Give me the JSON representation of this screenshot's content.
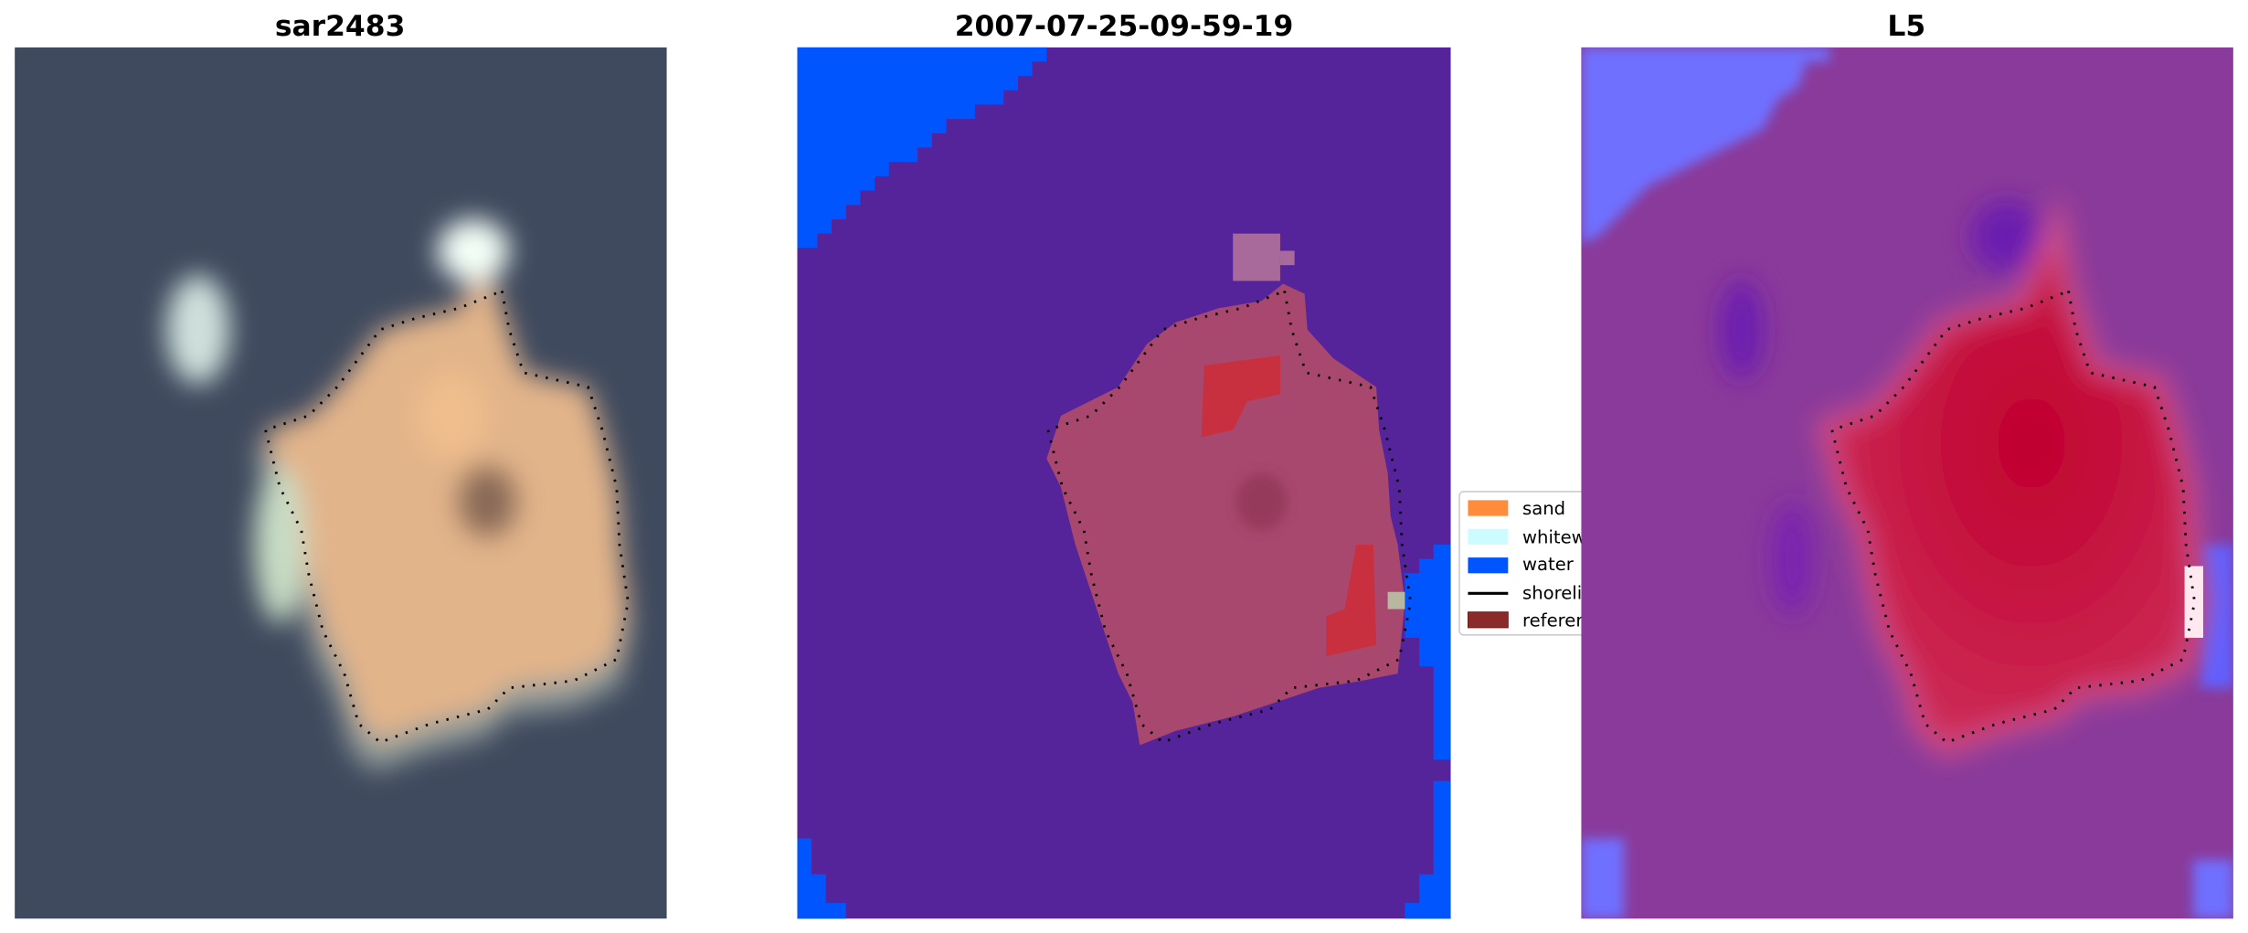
{
  "panels": [
    {
      "title": "sar2483"
    },
    {
      "title": "2007-07-25-09-59-19"
    },
    {
      "title": "L5"
    }
  ],
  "legend": {
    "placement": "right of middle panel",
    "items": [
      {
        "label": "sand",
        "color": "#ff8c3a",
        "kind": "patch"
      },
      {
        "label": "whitewater",
        "color": "#ccfcff",
        "kind": "patch"
      },
      {
        "label": "water",
        "color": "#0055ff",
        "kind": "patch"
      },
      {
        "label": "shoreline",
        "color": "#000000",
        "kind": "line"
      },
      {
        "label": "reference",
        "color": "#8b2a2a",
        "kind": "patch"
      }
    ]
  },
  "colors": {
    "sea_rgb": "#3f4a5e",
    "sand_rgb": "#e8b88a",
    "class_water": "#0055ff",
    "class_background": "#55249a",
    "class_reference": "#a8486e",
    "prob_background": "#8a3a9a",
    "prob_high": "#c0103f",
    "prob_low": "#7070ff"
  }
}
